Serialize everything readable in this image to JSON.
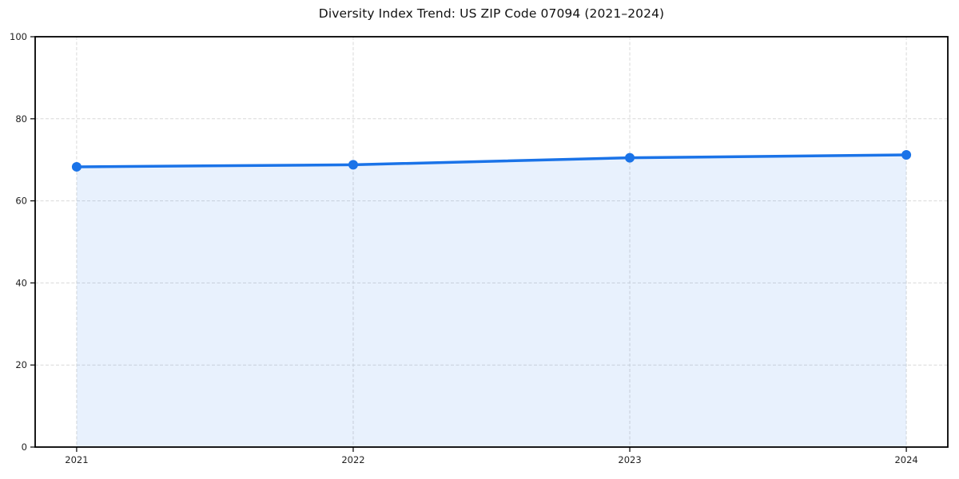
{
  "title": "Diversity Index Trend: US ZIP Code 07094 (2021–2024)",
  "chart_data": {
    "type": "area",
    "title": "Diversity Index Trend: US ZIP Code 07094 (2021–2024)",
    "x": [
      2021,
      2022,
      2023,
      2024
    ],
    "series": [
      {
        "name": "Diversity Index",
        "values": [
          68.3,
          68.8,
          70.5,
          71.2
        ]
      }
    ],
    "xlabel": "",
    "ylabel": "",
    "xlim": [
      2020.85,
      2024.15
    ],
    "ylim": [
      0,
      100
    ],
    "xticks": [
      2021,
      2022,
      2023,
      2024
    ],
    "yticks": [
      0,
      20,
      40,
      60,
      80,
      100
    ],
    "grid": true,
    "grid_style": "dashed",
    "legend_position": "none",
    "colors": {
      "line": "#1a73e8",
      "marker": "#1a73e8",
      "fill": "rgba(26,115,232,0.10)",
      "grid": "#d9d9d9",
      "spine": "#000000",
      "tick_label": "#222222",
      "title": "#111111",
      "background": "#ffffff"
    },
    "line_width": 3.5,
    "marker_radius": 6
  }
}
